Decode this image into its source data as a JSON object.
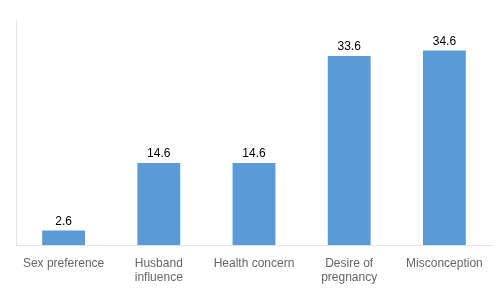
{
  "chart_data": {
    "type": "bar",
    "categories": [
      "Sex preference",
      "Husband\ninfluence",
      "Health concern",
      "Desire of\npregnancy",
      "Misconception"
    ],
    "values": [
      2.6,
      14.6,
      14.6,
      33.6,
      34.6
    ],
    "color": "#5B9BD5",
    "ylim": [
      0,
      40
    ],
    "grid": false,
    "data_labels": true,
    "tick_labels": "x"
  }
}
